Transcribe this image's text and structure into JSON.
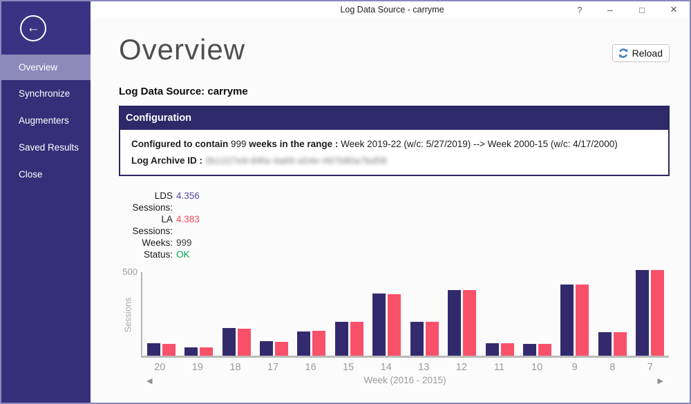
{
  "window": {
    "title": "Log Data Source - carryme",
    "controls": {
      "help": "?",
      "minimize": "–",
      "maximize": "□",
      "close": "✕"
    }
  },
  "sidebar": {
    "back_icon": "arrow-left-circle",
    "back_glyph": "←",
    "items": [
      {
        "label": "Overview",
        "selected": true
      },
      {
        "label": "Synchronize",
        "selected": false
      },
      {
        "label": "Augmenters",
        "selected": false
      },
      {
        "label": "Saved Results",
        "selected": false
      },
      {
        "label": "Close",
        "selected": false
      }
    ]
  },
  "main": {
    "page_title": "Overview",
    "reload_label": "Reload",
    "source_heading": "Log Data Source: carryme",
    "configuration": {
      "header": "Configuration",
      "line1": {
        "bold1": "Configured to contain",
        "value1": "999",
        "bold2": "weeks in the range :",
        "rest": "Week 2019-22 (w/c: 5/27/2019) --> Week 2000-15 (w/c: 4/17/2000)"
      },
      "line2": {
        "label": "Log Archive ID :",
        "value_obscured": "2b1227e9-69fa-4a69-a54e-497b80a7bd58"
      }
    },
    "stats": [
      {
        "label": "LDS Sessions:",
        "value": "4.356",
        "color": "#504d9e"
      },
      {
        "label": "LA Sessions:",
        "value": "4.383",
        "color": "#f8485e"
      },
      {
        "label": "Weeks:",
        "value": "999",
        "color": "#3a3a3a"
      },
      {
        "label": "Status:",
        "value": "OK",
        "color": "#00a550"
      }
    ]
  },
  "chart_data": {
    "type": "bar",
    "categories": [
      "20",
      "19",
      "18",
      "17",
      "16",
      "15",
      "14",
      "13",
      "12",
      "11",
      "10",
      "9",
      "8",
      "7"
    ],
    "series": [
      {
        "name": "LDS Sessions",
        "color": "#332a6e",
        "values": [
          71,
          50,
          161,
          85,
          143,
          197,
          362,
          196,
          383,
          72,
          68,
          417,
          136,
          500
        ]
      },
      {
        "name": "LA Sessions",
        "color": "#f9516a",
        "values": [
          67,
          47,
          159,
          82,
          145,
          197,
          360,
          198,
          382,
          72,
          67,
          416,
          138,
          498
        ]
      }
    ],
    "title": "",
    "xlabel": "Week (2016 - 2015)",
    "ylabel": "Sessions",
    "ylim": [
      0,
      500
    ],
    "yticks": [
      "500"
    ],
    "grid": false,
    "legend": "none",
    "nav": {
      "prev": "◀",
      "next": "▶"
    }
  }
}
